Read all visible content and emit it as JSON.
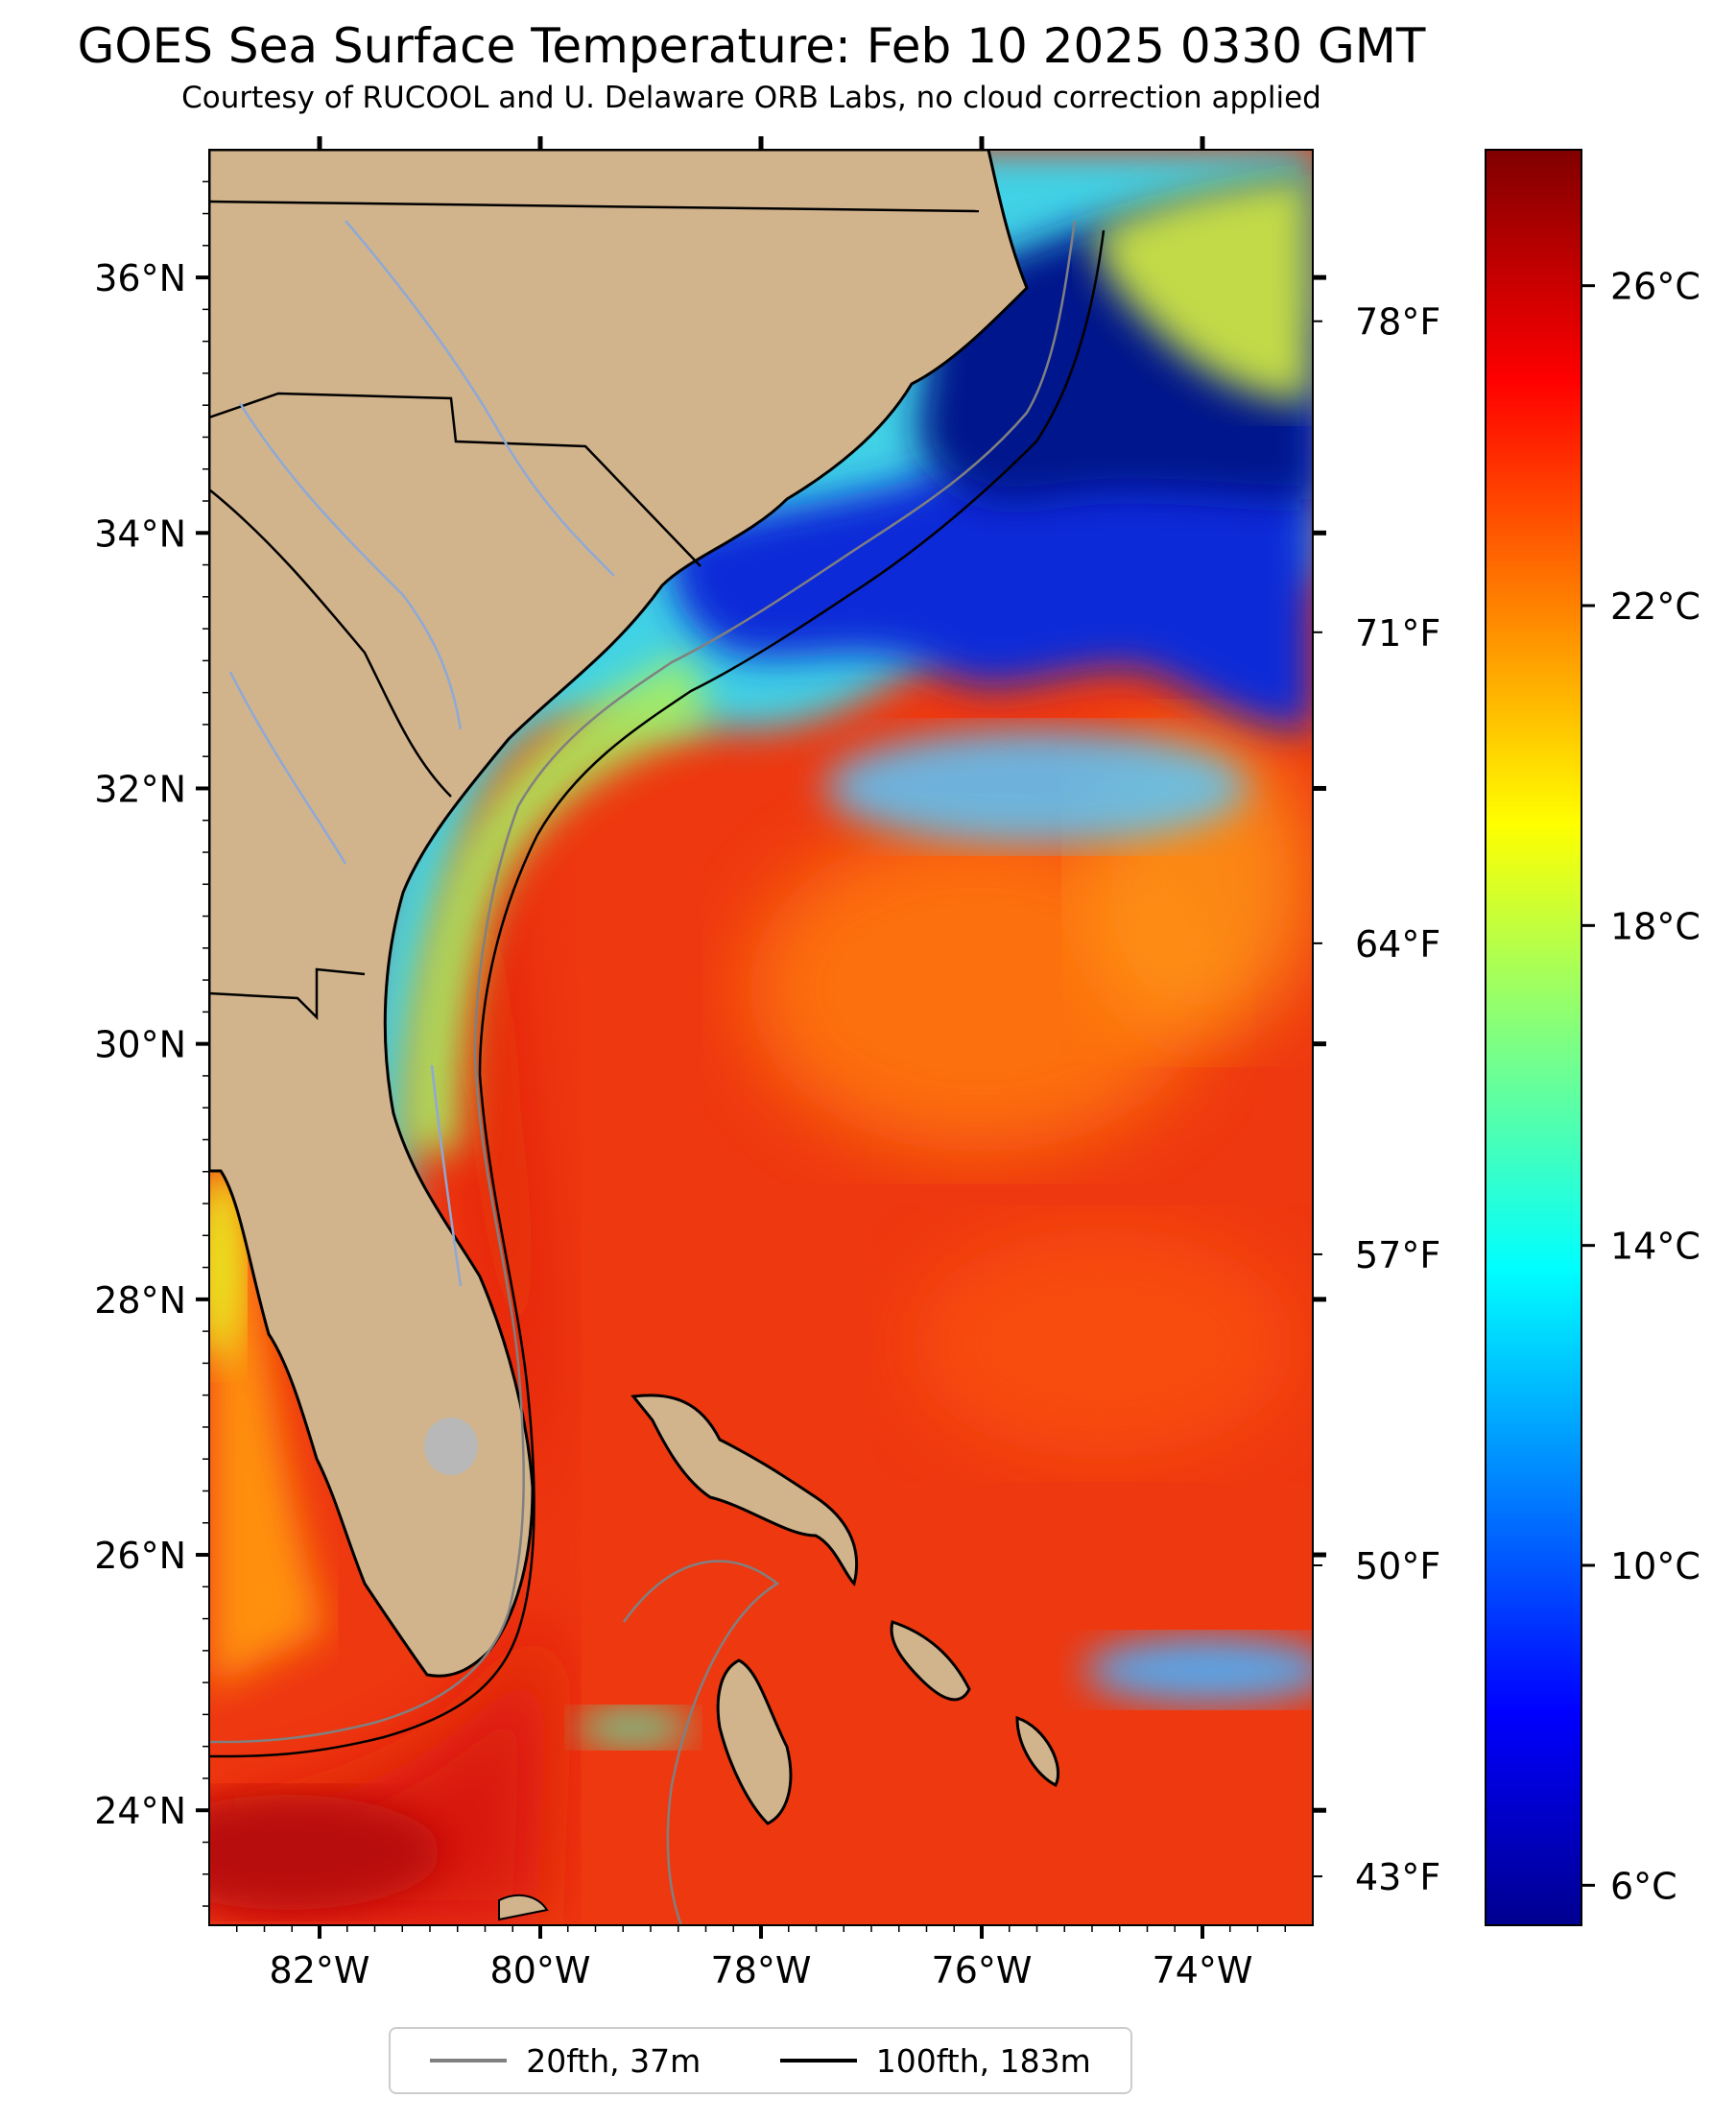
{
  "title": "GOES Sea Surface Temperature: Feb 10 2025 0330 GMT",
  "subtitle": "Courtesy of RUCOOL and U. Delaware ORB Labs, no cloud correction applied",
  "map": {
    "lat_range": [
      23.1,
      37.0
    ],
    "lon_range": [
      -83.0,
      -73.0
    ],
    "lat_ticks": [
      {
        "value": 36,
        "label": "36°N"
      },
      {
        "value": 34,
        "label": "34°N"
      },
      {
        "value": 32,
        "label": "32°N"
      },
      {
        "value": 30,
        "label": "30°N"
      },
      {
        "value": 28,
        "label": "28°N"
      },
      {
        "value": 26,
        "label": "26°N"
      },
      {
        "value": 24,
        "label": "24°N"
      }
    ],
    "lon_ticks": [
      {
        "value": -82,
        "label": "82°W"
      },
      {
        "value": -80,
        "label": "80°W"
      },
      {
        "value": -78,
        "label": "78°W"
      },
      {
        "value": -76,
        "label": "76°W"
      },
      {
        "value": -74,
        "label": "74°W"
      }
    ],
    "fahrenheit_ticks": [
      {
        "value": 78,
        "label": "78°F"
      },
      {
        "value": 71,
        "label": "71°F"
      },
      {
        "value": 64,
        "label": "64°F"
      },
      {
        "value": 57,
        "label": "57°F"
      },
      {
        "value": 50,
        "label": "50°F"
      },
      {
        "value": 43,
        "label": "43°F"
      }
    ],
    "colors": {
      "land": "#d2b48c",
      "land_outline": "#000000",
      "rivers": "#8ea9d6",
      "isobath_20fth": "#808080",
      "isobath_100fth": "#000000"
    }
  },
  "colorbar": {
    "colormap": "jet",
    "range_c": [
      5.5,
      27.7
    ],
    "ticks": [
      {
        "value": 26,
        "label": "26°C"
      },
      {
        "value": 22,
        "label": "22°C"
      },
      {
        "value": 18,
        "label": "18°C"
      },
      {
        "value": 14,
        "label": "14°C"
      },
      {
        "value": 10,
        "label": "10°C"
      },
      {
        "value": 6,
        "label": "6°C"
      }
    ]
  },
  "legend": [
    {
      "label": "20fth, 37m",
      "color": "#808080"
    },
    {
      "label": "100fth, 183m",
      "color": "#000000"
    }
  ]
}
